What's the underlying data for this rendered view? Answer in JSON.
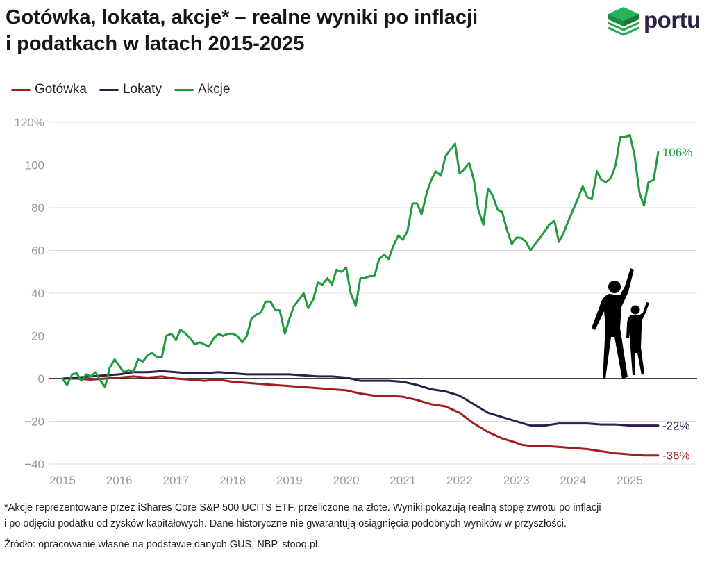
{
  "title": {
    "line1": "Gotówka, lokata, akcje* – realne wyniki po inflacji",
    "line2": "i podatkach w latach 2015-2025"
  },
  "logo": {
    "text": "portu",
    "icon": "green-stack-icon",
    "color": "#1fa64a"
  },
  "legend": [
    {
      "label": "Gotówka",
      "color": "#a31d1f"
    },
    {
      "label": "Lokaty",
      "color": "#2e1d4f"
    },
    {
      "label": "Akcje",
      "color": "#1f9a3e"
    }
  ],
  "footnote": {
    "line1": "*Akcje reprezentowane przez iShares Core S&P 500 UCITS ETF, przeliczone na złote. Wyniki pokazują realną stopę zwrotu po inflacji",
    "line2": "i po odjęciu podatku od zysków kapitałowych. Dane historyczne nie gwarantują osiągnięcia podobnych wyników w przyszłości."
  },
  "source": "Źródło: opracowanie własne na podstawie danych GUS, NBP, stooq.pl.",
  "illustration": "adult-and-child-silhouette-pointing-up",
  "chart_data": {
    "type": "line",
    "xlim": [
      2015,
      2025.55
    ],
    "ylim": [
      -40,
      120
    ],
    "x_ticks": [
      "2015",
      "2016",
      "2017",
      "2018",
      "2019",
      "2020",
      "2021",
      "2022",
      "2023",
      "2024",
      "2025"
    ],
    "y_ticks": [
      "120%",
      "100",
      "80",
      "60",
      "40",
      "20",
      "0",
      "−20",
      "−40"
    ],
    "grid": true,
    "legend_position": "top-left",
    "series": [
      {
        "name": "Gotówka",
        "color": "#a31d1f",
        "end_label": "-36%",
        "x": [
          2015,
          2015.25,
          2015.5,
          2015.75,
          2016,
          2016.25,
          2016.5,
          2016.75,
          2017,
          2017.25,
          2017.5,
          2017.75,
          2018,
          2018.25,
          2018.5,
          2018.75,
          2019,
          2019.25,
          2019.5,
          2019.75,
          2020,
          2020.25,
          2020.5,
          2020.75,
          2021,
          2021.25,
          2021.5,
          2021.75,
          2022,
          2022.1,
          2022.25,
          2022.5,
          2022.75,
          2023,
          2023.1,
          2023.25,
          2023.5,
          2023.75,
          2024,
          2024.25,
          2024.5,
          2024.75,
          2025,
          2025.25,
          2025.5
        ],
        "y": [
          0,
          0,
          -0.5,
          0,
          0.5,
          1,
          0.5,
          1,
          0,
          -0.5,
          -1,
          -0.5,
          -1.5,
          -2,
          -2.5,
          -3,
          -3.5,
          -4,
          -4.5,
          -5,
          -5.5,
          -7,
          -8,
          -8,
          -8.5,
          -10,
          -12,
          -13,
          -16,
          -18,
          -21,
          -25,
          -28,
          -30,
          -31,
          -31.5,
          -31.5,
          -32,
          -32.5,
          -33,
          -34,
          -35,
          -35.5,
          -36,
          -36
        ]
      },
      {
        "name": "Lokaty",
        "color": "#2e1d4f",
        "end_label": "-22%",
        "x": [
          2015,
          2015.25,
          2015.5,
          2015.75,
          2016,
          2016.25,
          2016.5,
          2016.75,
          2017,
          2017.25,
          2017.5,
          2017.75,
          2018,
          2018.25,
          2018.5,
          2018.75,
          2019,
          2019.25,
          2019.5,
          2019.75,
          2020,
          2020.25,
          2020.5,
          2020.75,
          2021,
          2021.25,
          2021.5,
          2021.75,
          2022,
          2022.25,
          2022.5,
          2022.75,
          2023,
          2023.25,
          2023.5,
          2023.75,
          2024,
          2024.25,
          2024.5,
          2024.75,
          2025,
          2025.25,
          2025.5
        ],
        "y": [
          0,
          0.5,
          1,
          1.5,
          2,
          3,
          3,
          3.5,
          3,
          2.5,
          2.5,
          3,
          2.5,
          2,
          2,
          2,
          2,
          1.5,
          1,
          1,
          0.5,
          -1,
          -1,
          -1,
          -1.5,
          -3,
          -5,
          -6,
          -8,
          -12,
          -16,
          -18,
          -20,
          -22,
          -22,
          -21,
          -21,
          -21,
          -21.5,
          -21.5,
          -22,
          -22,
          -22
        ]
      },
      {
        "name": "Akcje",
        "color": "#1f9a3e",
        "end_label": "106%",
        "x": [
          2015,
          2015.08,
          2015.17,
          2015.25,
          2015.33,
          2015.42,
          2015.5,
          2015.58,
          2015.67,
          2015.75,
          2015.83,
          2015.92,
          2016,
          2016.08,
          2016.17,
          2016.25,
          2016.33,
          2016.42,
          2016.5,
          2016.58,
          2016.67,
          2016.75,
          2016.83,
          2016.92,
          2017,
          2017.08,
          2017.17,
          2017.25,
          2017.33,
          2017.42,
          2017.5,
          2017.58,
          2017.67,
          2017.75,
          2017.83,
          2017.92,
          2018,
          2018.08,
          2018.17,
          2018.25,
          2018.33,
          2018.42,
          2018.5,
          2018.58,
          2018.67,
          2018.75,
          2018.83,
          2018.92,
          2019,
          2019.08,
          2019.17,
          2019.25,
          2019.33,
          2019.42,
          2019.5,
          2019.58,
          2019.67,
          2019.75,
          2019.83,
          2019.92,
          2020,
          2020.08,
          2020.17,
          2020.25,
          2020.33,
          2020.42,
          2020.5,
          2020.58,
          2020.67,
          2020.75,
          2020.83,
          2020.92,
          2021,
          2021.08,
          2021.17,
          2021.25,
          2021.33,
          2021.42,
          2021.5,
          2021.58,
          2021.67,
          2021.75,
          2021.83,
          2021.92,
          2022,
          2022.08,
          2022.17,
          2022.25,
          2022.33,
          2022.42,
          2022.5,
          2022.58,
          2022.67,
          2022.75,
          2022.83,
          2022.92,
          2023,
          2023.08,
          2023.17,
          2023.25,
          2023.33,
          2023.42,
          2023.5,
          2023.58,
          2023.67,
          2023.75,
          2023.83,
          2023.92,
          2024,
          2024.08,
          2024.17,
          2024.25,
          2024.33,
          2024.42,
          2024.5,
          2024.58,
          2024.67,
          2024.75,
          2024.83,
          2024.92,
          2025,
          2025.08,
          2025.17,
          2025.25,
          2025.33,
          2025.42,
          2025.5
        ],
        "y": [
          0,
          -3,
          2,
          2.5,
          -1,
          2,
          1,
          3,
          -1,
          -4,
          5,
          9,
          6,
          3,
          4,
          3,
          9,
          8,
          11,
          12,
          10,
          10,
          20,
          21,
          18,
          23,
          21,
          19,
          16,
          17,
          16,
          15,
          19,
          21,
          20,
          21,
          21,
          20,
          17,
          20,
          28,
          30,
          31,
          36,
          36,
          32,
          32,
          21,
          28,
          34,
          37,
          40,
          33,
          37,
          45,
          44,
          47,
          44,
          51,
          50,
          52,
          40,
          34,
          47,
          47,
          48,
          48,
          56,
          58,
          56,
          62,
          67,
          65,
          69,
          82,
          82,
          77,
          87,
          93,
          97,
          95,
          104,
          107,
          110,
          96,
          98,
          101,
          93,
          79,
          72,
          89,
          86,
          79,
          78,
          70,
          63,
          66,
          66,
          64,
          60,
          63,
          66,
          69,
          72,
          74,
          64,
          68,
          74,
          79,
          84,
          90,
          85,
          84,
          97,
          93,
          92,
          94,
          100,
          113,
          113,
          114,
          105,
          87,
          81,
          92,
          93,
          106
        ]
      }
    ]
  }
}
